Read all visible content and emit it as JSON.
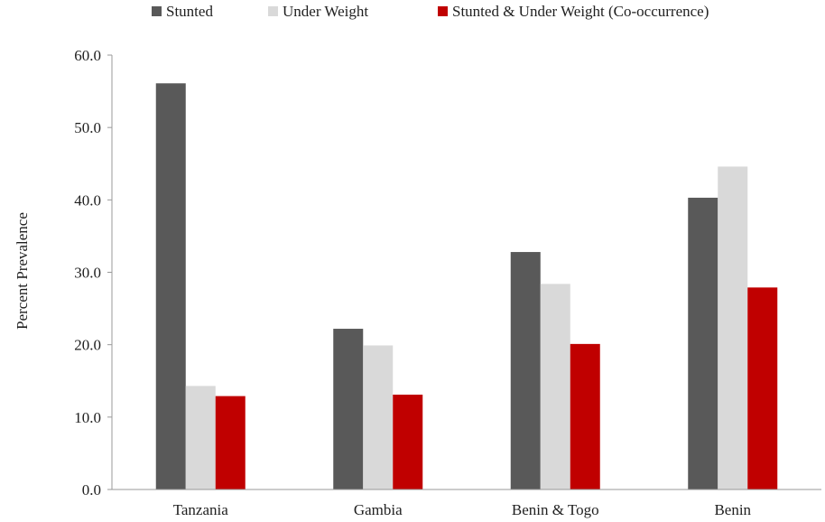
{
  "chart_data": {
    "type": "bar",
    "ylabel": "Percent Prevalence",
    "xlabel": "",
    "ylim": [
      0,
      60
    ],
    "yticks": [
      0,
      10,
      20,
      30,
      40,
      50,
      60
    ],
    "ytick_labels": [
      "0.0",
      "10.0",
      "20.0",
      "30.0",
      "40.0",
      "50.0",
      "60.0"
    ],
    "categories": [
      "Tanzania",
      "Gambia",
      "Benin & Togo",
      "Benin"
    ],
    "series": [
      {
        "name": "Stunted",
        "color": "#595959",
        "values": [
          56.1,
          22.2,
          32.8,
          40.3
        ]
      },
      {
        "name": "Under Weight",
        "color": "#d9d9d9",
        "values": [
          14.3,
          19.9,
          28.4,
          44.6
        ]
      },
      {
        "name": "Stunted & Under Weight (Co-occurrence)",
        "color": "#c00000",
        "values": [
          12.9,
          13.1,
          20.1,
          27.9
        ]
      }
    ],
    "grid": false,
    "legend_position": "top"
  }
}
